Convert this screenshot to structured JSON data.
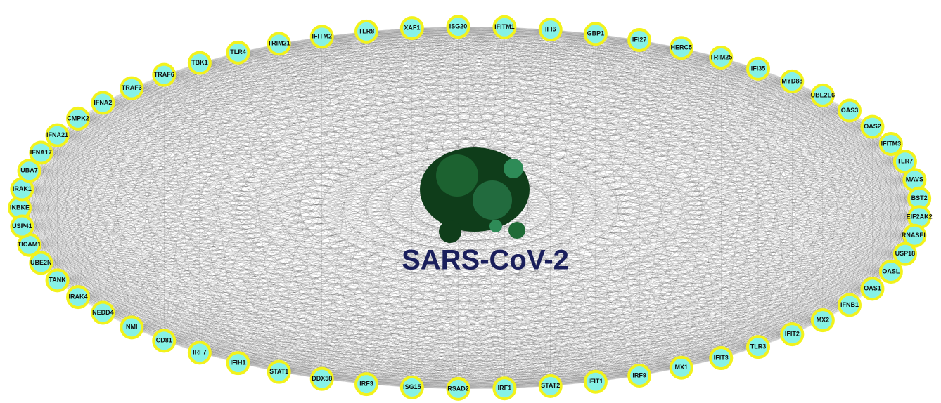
{
  "title": "SARS-CoV-2",
  "nodes": [
    {
      "label": "IKBKE"
    },
    {
      "label": "IRAK1"
    },
    {
      "label": "UBA7"
    },
    {
      "label": "IFNA17"
    },
    {
      "label": "IFNA21"
    },
    {
      "label": "CMPK2"
    },
    {
      "label": "IFNA2"
    },
    {
      "label": "TRAF3"
    },
    {
      "label": "TRAF6"
    },
    {
      "label": "TBK1"
    },
    {
      "label": "TLR4"
    },
    {
      "label": "TRIM21"
    },
    {
      "label": "IFITM2"
    },
    {
      "label": "TLR8"
    },
    {
      "label": "XAF1"
    },
    {
      "label": "ISG20"
    },
    {
      "label": "IFITM1"
    },
    {
      "label": "IFI6"
    },
    {
      "label": "GBP1"
    },
    {
      "label": "IFI27"
    },
    {
      "label": "HERC5"
    },
    {
      "label": "TRIM25"
    },
    {
      "label": "IFI35"
    },
    {
      "label": "MYD88"
    },
    {
      "label": "UBE2L6"
    },
    {
      "label": "OAS3"
    },
    {
      "label": "OAS2"
    },
    {
      "label": "IFITM3"
    },
    {
      "label": "TLR7"
    },
    {
      "label": "MAVS"
    },
    {
      "label": "BST2"
    },
    {
      "label": "EIF2AK2"
    },
    {
      "label": "RNASEL"
    },
    {
      "label": "USP18"
    },
    {
      "label": "OASL"
    },
    {
      "label": "OAS1"
    },
    {
      "label": "IFNB1"
    },
    {
      "label": "MX2"
    },
    {
      "label": "IFIT2"
    },
    {
      "label": "TLR3"
    },
    {
      "label": "IFIT3"
    },
    {
      "label": "MX1"
    },
    {
      "label": "IRF9"
    },
    {
      "label": "IFIT1"
    },
    {
      "label": "STAT2"
    },
    {
      "label": "IRF1"
    },
    {
      "label": "RSAD2"
    },
    {
      "label": "ISG15"
    },
    {
      "label": "IRF3"
    },
    {
      "label": "DDX58"
    },
    {
      "label": "STAT1"
    },
    {
      "label": "IFIH1"
    },
    {
      "label": "IRF7"
    },
    {
      "label": "CD81"
    },
    {
      "label": "NMI"
    },
    {
      "label": "NEDD4"
    },
    {
      "label": "IRAK4"
    },
    {
      "label": "TANK"
    },
    {
      "label": "UBE2N"
    },
    {
      "label": "TICAM1"
    },
    {
      "label": "USP41"
    }
  ]
}
